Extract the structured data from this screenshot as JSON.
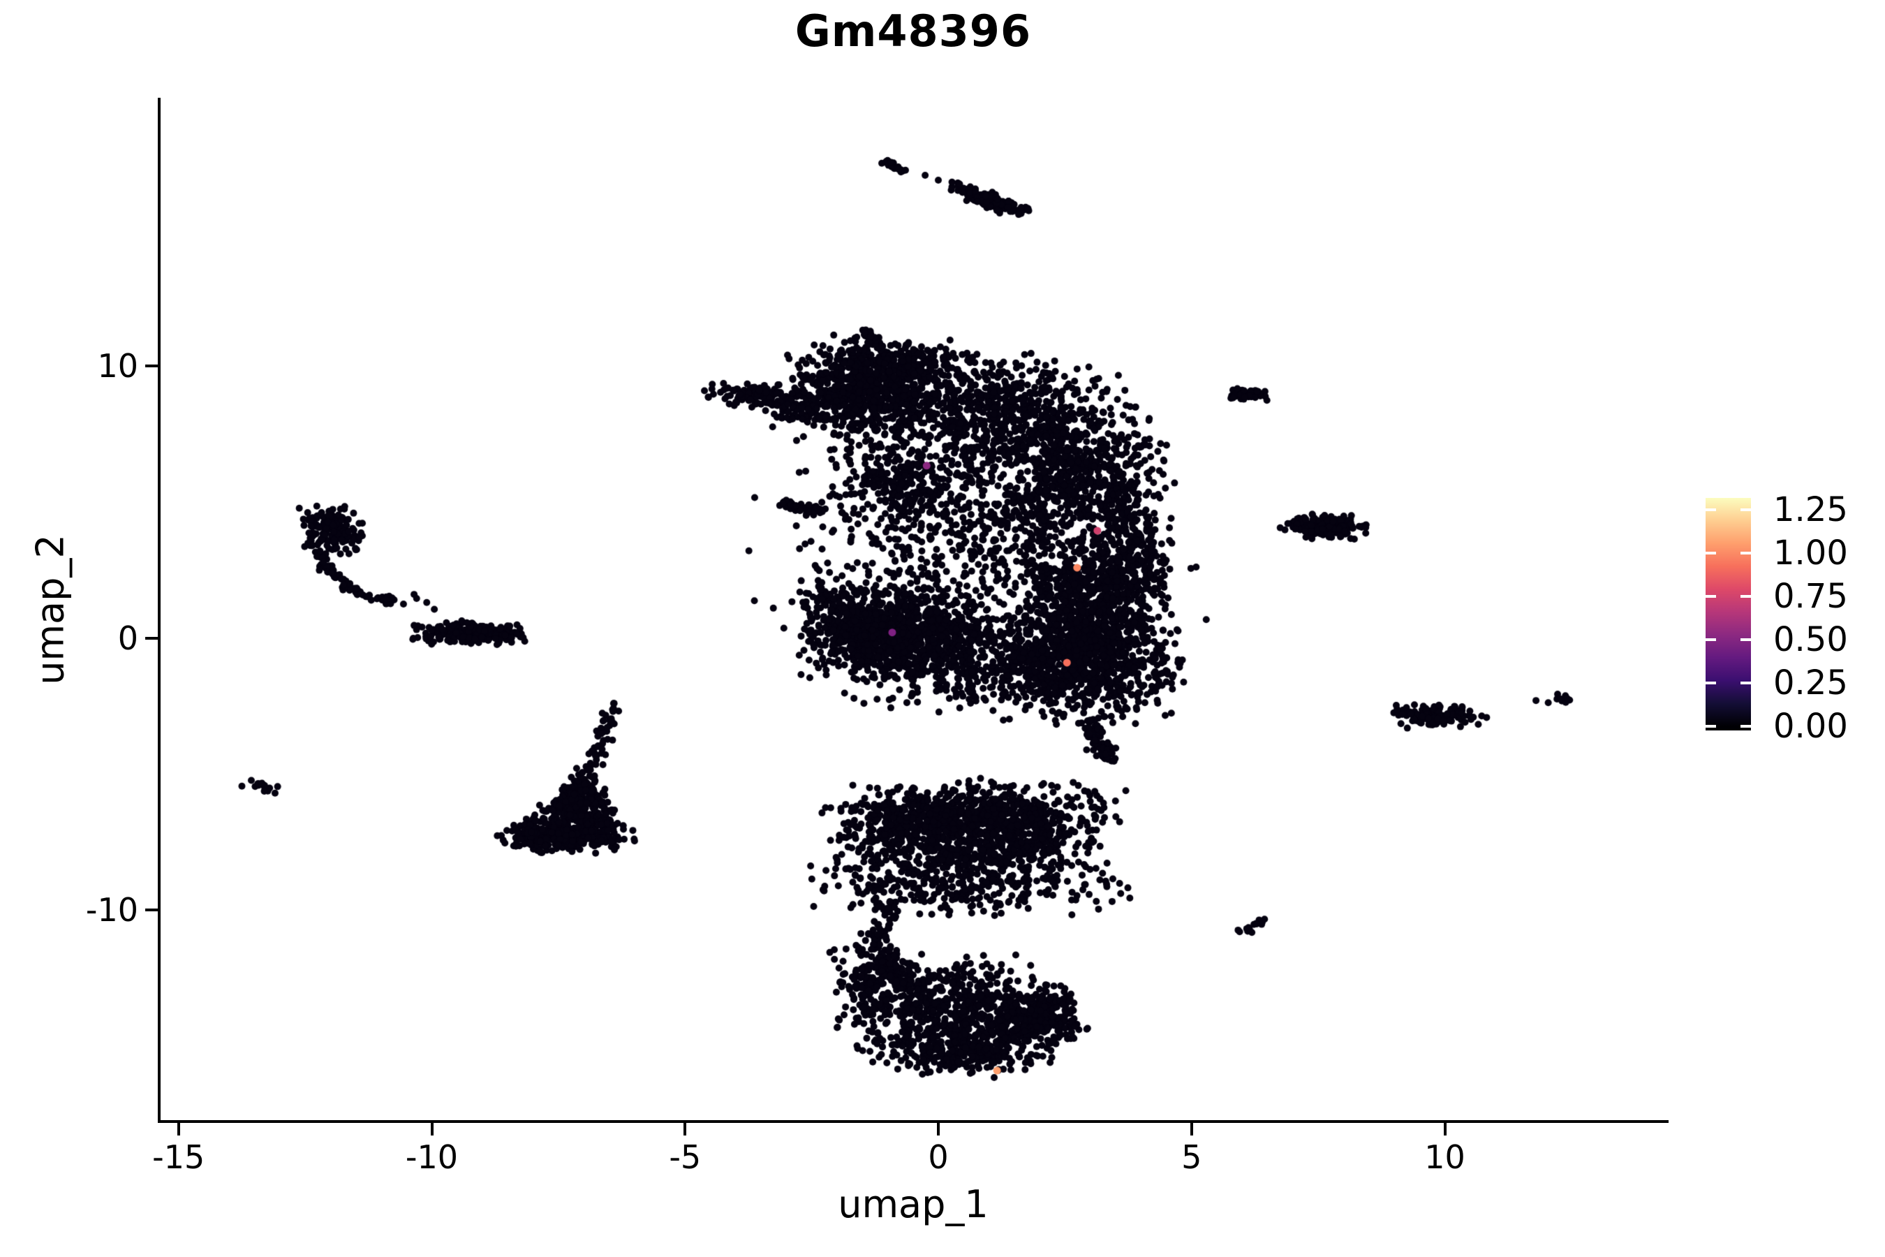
{
  "chart_data": {
    "type": "scatter",
    "title": "Gm48396",
    "xlabel": "umap_1",
    "ylabel": "umap_2",
    "x_ticks": [
      -15,
      -10,
      -5,
      0,
      5,
      10
    ],
    "y_ticks": [
      10,
      0,
      -10
    ],
    "xlim": [
      -15.4,
      14.4
    ],
    "ylim": [
      -17.8,
      19.8
    ],
    "grid": false,
    "background": "#ffffff",
    "axis_color": "#000000",
    "point_color": "#050210",
    "point_radius_px": 5,
    "legend": {
      "position": "right",
      "tick_labels": [
        "1.25",
        "1.00",
        "0.75",
        "0.50",
        "0.25",
        "0.00"
      ],
      "tick_values": [
        1.25,
        1.0,
        0.75,
        0.5,
        0.25,
        0.0
      ],
      "colormap": "magma",
      "range": [
        0,
        1.32
      ],
      "gradient_stops": [
        [
          "#000004",
          0
        ],
        [
          "#000004",
          0.018
        ],
        [
          "#140e36",
          0.116
        ],
        [
          "#3b0f70",
          0.215
        ],
        [
          "#641a80",
          0.313
        ],
        [
          "#8c2981",
          0.411
        ],
        [
          "#b73779",
          0.51
        ],
        [
          "#de4968",
          0.608
        ],
        [
          "#f7705c",
          0.706
        ],
        [
          "#fe9f6d",
          0.805
        ],
        [
          "#fece91",
          0.903
        ],
        [
          "#fcfdbf",
          1
        ]
      ]
    },
    "clusters": [
      {
        "name": "main-topleft-arm",
        "type": "gauss",
        "cx": -3.5,
        "cy": 8.9,
        "sx": 0.5,
        "sy": 0.22,
        "rot": -0.15,
        "n": 130
      },
      {
        "name": "main-topleft-trail",
        "type": "gauss",
        "cx": -2.7,
        "cy": 8.4,
        "sx": 0.4,
        "sy": 0.3,
        "n": 60
      },
      {
        "name": "main-topband-left",
        "type": "gauss",
        "cx": -1.35,
        "cy": 9.0,
        "sx": 0.75,
        "sy": 0.95,
        "n": 650
      },
      {
        "name": "main-topband-upper",
        "type": "gauss",
        "cx": -0.9,
        "cy": 10.0,
        "sx": 0.9,
        "sy": 0.4,
        "n": 250
      },
      {
        "name": "main-topband-right",
        "type": "gauss",
        "cx": 1.3,
        "cy": 8.2,
        "sx": 1.15,
        "sy": 1.0,
        "n": 650
      },
      {
        "name": "main-right-upper",
        "type": "gauss",
        "cx": 2.7,
        "cy": 6.0,
        "sx": 0.8,
        "sy": 1.2,
        "n": 500
      },
      {
        "name": "main-right-column",
        "type": "gauss",
        "cx": 3.55,
        "cy": 3.0,
        "sx": 0.5,
        "sy": 1.6,
        "n": 350
      },
      {
        "name": "main-mid-sparse",
        "type": "gauss",
        "cx": 0.6,
        "cy": 4.2,
        "sx": 1.5,
        "sy": 1.8,
        "n": 420
      },
      {
        "name": "main-left-protrusion",
        "type": "line",
        "pts": [
          [
            -3.05,
            4.95
          ],
          [
            -2.35,
            4.6
          ]
        ],
        "jitter": 0.09,
        "n": 55
      },
      {
        "name": "main-leftmid",
        "type": "gauss",
        "cx": -0.9,
        "cy": 5.8,
        "sx": 0.5,
        "sy": 0.8,
        "n": 180
      },
      {
        "name": "main-lowerleft-dense",
        "type": "gauss",
        "cx": -0.8,
        "cy": 0.2,
        "sx": 0.85,
        "sy": 0.75,
        "n": 900
      },
      {
        "name": "main-lowerleft-edge",
        "type": "gauss",
        "cx": -2.0,
        "cy": 1.1,
        "sx": 0.4,
        "sy": 0.6,
        "n": 120
      },
      {
        "name": "main-bottom-band",
        "type": "gauss",
        "cx": 0.6,
        "cy": -0.9,
        "sx": 1.2,
        "sy": 0.75,
        "n": 400
      },
      {
        "name": "main-right-lower-dense",
        "type": "gauss",
        "cx": 2.9,
        "cy": -1.0,
        "sx": 0.85,
        "sy": 0.95,
        "n": 800
      },
      {
        "name": "main-right-mid-dense",
        "type": "gauss",
        "cx": 2.9,
        "cy": 1.5,
        "sx": 0.75,
        "sy": 0.95,
        "n": 450
      },
      {
        "name": "main-bottom-tail",
        "type": "line",
        "pts": [
          [
            2.95,
            -3.1
          ],
          [
            3.4,
            -4.5
          ]
        ],
        "jitter": 0.1,
        "n": 80
      },
      {
        "name": "main-fill",
        "type": "gauss",
        "cx": 0.8,
        "cy": 3.2,
        "sx": 2.0,
        "sy": 2.6,
        "n": 350
      },
      {
        "name": "main-top-ministreak",
        "type": "line",
        "pts": [
          [
            -1.45,
            11.35
          ],
          [
            -1.2,
            10.75
          ]
        ],
        "jitter": 0.06,
        "n": 28
      },
      {
        "name": "top-blob",
        "type": "gauss",
        "cx": 1.05,
        "cy": 16.05,
        "sx": 0.42,
        "sy": 0.13,
        "rot": -0.6,
        "n": 150
      },
      {
        "name": "top-streak",
        "type": "line",
        "pts": [
          [
            -1.05,
            17.5
          ],
          [
            -0.7,
            17.15
          ]
        ],
        "jitter": 0.05,
        "n": 26
      },
      {
        "name": "top-dots",
        "type": "dots",
        "pts": [
          [
            -0.26,
            17.0
          ],
          [
            0.0,
            16.82
          ],
          [
            0.27,
            16.75
          ],
          [
            0.42,
            16.68
          ]
        ]
      },
      {
        "name": "hook-blob",
        "type": "gauss",
        "cx": -12.0,
        "cy": 3.95,
        "sx": 0.3,
        "sy": 0.42,
        "n": 170
      },
      {
        "name": "hook-curve",
        "type": "line",
        "pts": [
          [
            -12.2,
            3.2
          ],
          [
            -12.05,
            2.5
          ],
          [
            -11.7,
            1.9
          ],
          [
            -11.3,
            1.55
          ],
          [
            -10.9,
            1.38
          ],
          [
            -10.7,
            1.33
          ]
        ],
        "jitter": 0.07,
        "n": 75
      },
      {
        "name": "hook-gap-dots",
        "type": "dots",
        "pts": [
          [
            -10.35,
            1.6
          ],
          [
            -10.1,
            1.3
          ],
          [
            -9.95,
            1.05
          ],
          [
            -10.3,
            1.45
          ]
        ]
      },
      {
        "name": "left-horizontal-blob",
        "type": "gauss",
        "cx": -9.25,
        "cy": 0.2,
        "sx": 0.5,
        "sy": 0.2,
        "n": 230
      },
      {
        "name": "tiny-x-clump",
        "type": "gauss",
        "cx": -13.3,
        "cy": -5.5,
        "sx": 0.2,
        "sy": 0.16,
        "n": 14
      },
      {
        "name": "triangle-tail",
        "type": "line",
        "pts": [
          [
            -6.38,
            -2.45
          ],
          [
            -6.6,
            -3.6
          ],
          [
            -6.92,
            -5.05
          ]
        ],
        "jitter": 0.08,
        "n": 55
      },
      {
        "name": "triangle-body",
        "type": "tri",
        "a": [
          -6.9,
          -4.8
        ],
        "b": [
          -8.55,
          -7.45
        ],
        "c": [
          -6.25,
          -7.45
        ],
        "jitter": 0.1,
        "n": 380
      },
      {
        "name": "triangle-base",
        "type": "gauss",
        "cx": -7.4,
        "cy": -7.35,
        "sx": 0.62,
        "sy": 0.26,
        "n": 230
      },
      {
        "name": "bottom-upper-lobe-left",
        "type": "gauss",
        "cx": -0.35,
        "cy": -7.3,
        "sx": 0.85,
        "sy": 0.85,
        "n": 600
      },
      {
        "name": "bottom-upper-lobe-right",
        "type": "gauss",
        "cx": 1.5,
        "cy": -7.2,
        "sx": 0.8,
        "sy": 0.9,
        "n": 520
      },
      {
        "name": "bottom-upper-lobe-top",
        "type": "gauss",
        "cx": 0.9,
        "cy": -6.3,
        "sx": 1.3,
        "sy": 0.45,
        "n": 220
      },
      {
        "name": "bottom-upper-lobe-bottom",
        "type": "gauss",
        "cx": 0.6,
        "cy": -9.2,
        "sx": 1.4,
        "sy": 0.45,
        "n": 230
      },
      {
        "name": "bottom-neck",
        "type": "line",
        "pts": [
          [
            -0.95,
            -9.7
          ],
          [
            -1.15,
            -10.9
          ],
          [
            -1.05,
            -12.0
          ],
          [
            -0.8,
            -12.6
          ]
        ],
        "jitter": 0.12,
        "n": 100
      },
      {
        "name": "bottom-lower-lobe",
        "type": "gauss",
        "cx": 0.3,
        "cy": -13.8,
        "sx": 1.0,
        "sy": 0.95,
        "n": 700
      },
      {
        "name": "bottom-lower-arm",
        "type": "gauss",
        "cx": 1.95,
        "cy": -13.9,
        "sx": 0.45,
        "sy": 0.5,
        "n": 280
      },
      {
        "name": "bottom-lower-edge",
        "type": "gauss",
        "cx": 0.6,
        "cy": -15.3,
        "sx": 0.9,
        "sy": 0.4,
        "n": 200
      },
      {
        "name": "bottom-lower-left-edge",
        "type": "gauss",
        "cx": -1.15,
        "cy": -12.6,
        "sx": 0.45,
        "sy": 0.6,
        "n": 150
      },
      {
        "name": "right-small-blob-top",
        "type": "gauss",
        "cx": 6.1,
        "cy": 8.95,
        "sx": 0.22,
        "sy": 0.12,
        "n": 55
      },
      {
        "name": "right-mid-blob",
        "type": "gauss",
        "cx": 7.65,
        "cy": 4.1,
        "sx": 0.38,
        "sy": 0.22,
        "n": 170
      },
      {
        "name": "right-mid-dots",
        "type": "dots",
        "pts": [
          [
            6.9,
            4.2
          ],
          [
            7.05,
            4.0
          ],
          [
            6.75,
            4.05
          ]
        ]
      },
      {
        "name": "right-low-blob",
        "type": "gauss",
        "cx": 9.9,
        "cy": -2.85,
        "sx": 0.45,
        "sy": 0.22,
        "n": 130
      },
      {
        "name": "far-right-dot",
        "type": "dots",
        "pts": [
          [
            11.8,
            -2.3
          ]
        ]
      },
      {
        "name": "far-right-clump",
        "type": "gauss",
        "cx": 12.28,
        "cy": -2.25,
        "sx": 0.16,
        "sy": 0.1,
        "n": 11
      },
      {
        "name": "bottom-right-streak",
        "type": "line",
        "pts": [
          [
            5.95,
            -10.85
          ],
          [
            6.45,
            -10.3
          ]
        ],
        "jitter": 0.06,
        "n": 16
      }
    ],
    "highlight_points": [
      {
        "x": -0.23,
        "y": 6.33,
        "value": 0.4,
        "color": "#8c2981"
      },
      {
        "x": 3.14,
        "y": 3.94,
        "value": 0.6,
        "color": "#cf416d"
      },
      {
        "x": 2.74,
        "y": 2.58,
        "value": 0.95,
        "color": "#fb8661"
      },
      {
        "x": 2.54,
        "y": -0.91,
        "value": 0.9,
        "color": "#f7705c"
      },
      {
        "x": -0.91,
        "y": 0.2,
        "value": 0.3,
        "color": "#7f2182"
      },
      {
        "x": 1.16,
        "y": -15.9,
        "value": 1.1,
        "color": "#fe9f6d"
      }
    ]
  }
}
